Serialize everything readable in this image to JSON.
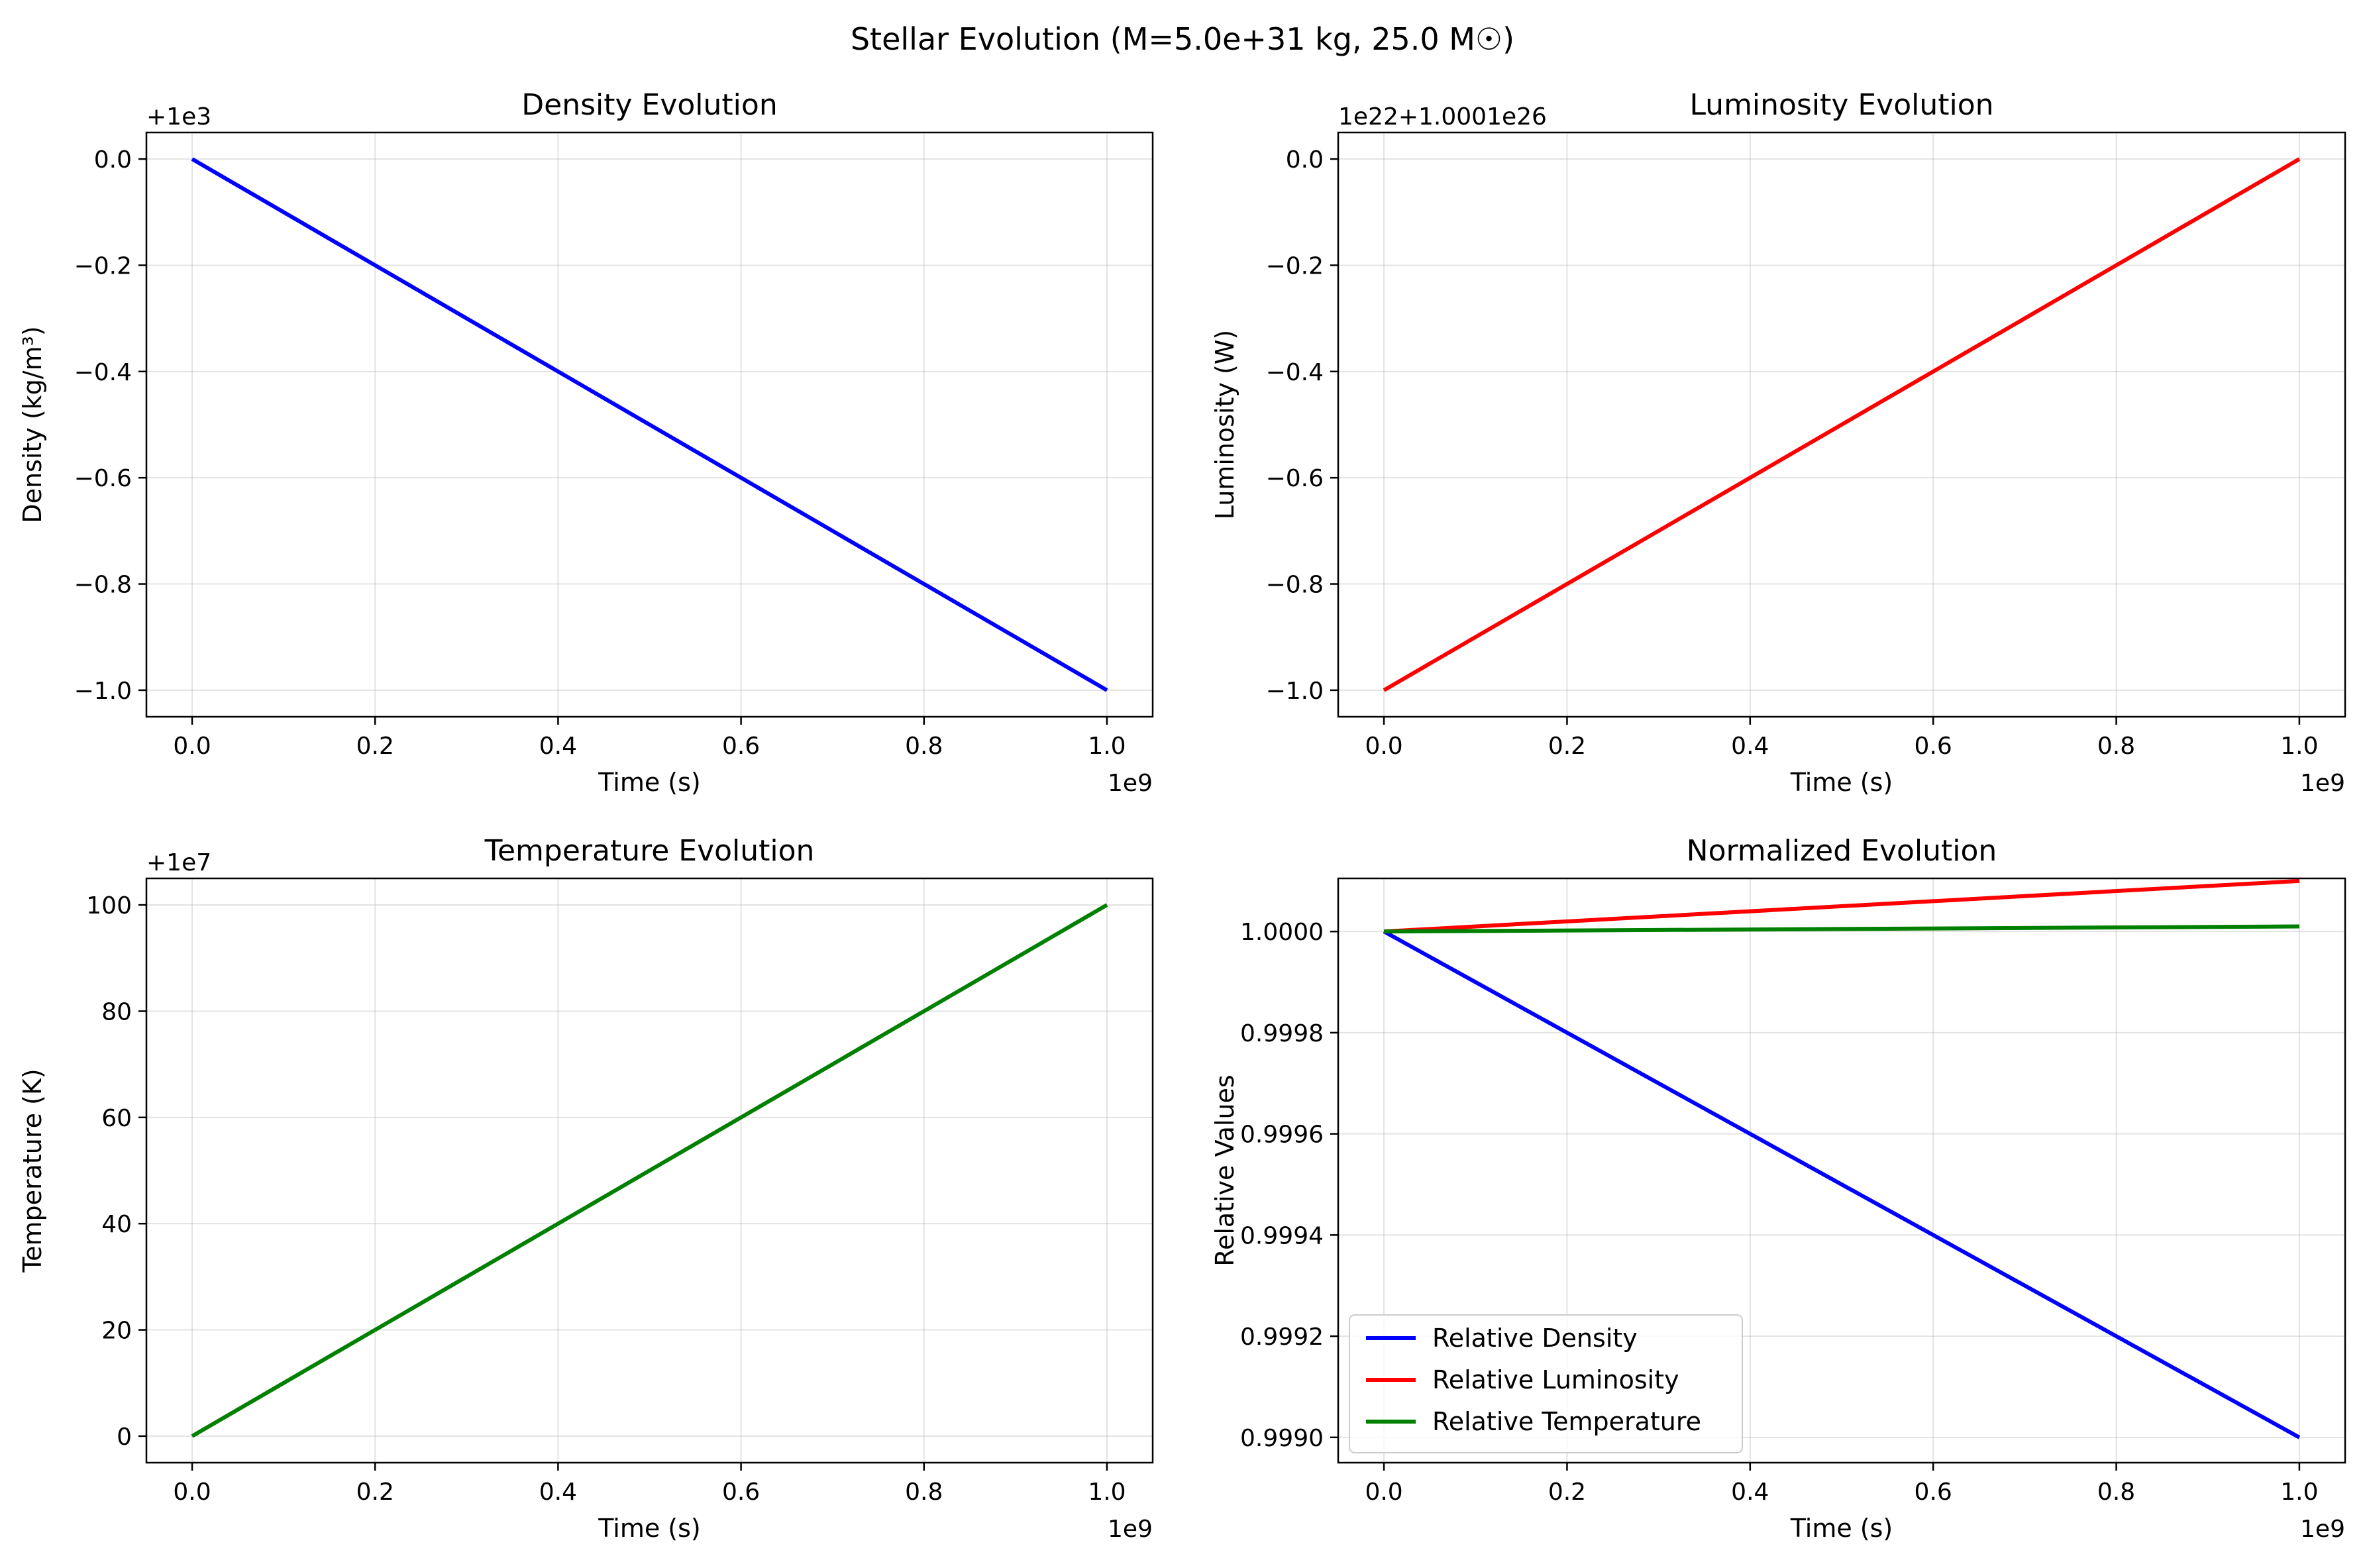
{
  "figure": {
    "suptitle": "Stellar Evolution (M=5.0e+31 kg, 25.0 M☉)"
  },
  "chart_data": [
    {
      "type": "line",
      "title": "Density Evolution",
      "xlabel": "Time (s)",
      "ylabel": "Density (kg/m³)",
      "x_offset_label": "1e9",
      "y_offset_label": "+1e3",
      "xlim": [
        -0.05,
        1.05
      ],
      "ylim": [
        -1.05,
        0.05
      ],
      "xticks": [
        0.0,
        0.2,
        0.4,
        0.6,
        0.8,
        1.0
      ],
      "xtick_labels": [
        "0.0",
        "0.2",
        "0.4",
        "0.6",
        "0.8",
        "1.0"
      ],
      "yticks": [
        0.0,
        -0.2,
        -0.4,
        -0.6,
        -0.8,
        -1.0
      ],
      "ytick_labels": [
        "0.0",
        "−0.2",
        "−0.4",
        "−0.6",
        "−0.8",
        "−1.0"
      ],
      "grid": true,
      "series": [
        {
          "color": "#0000ff",
          "x": [
            0.0,
            1.0
          ],
          "y": [
            0.0,
            -1.0
          ]
        }
      ]
    },
    {
      "type": "line",
      "title": "Luminosity Evolution",
      "xlabel": "Time (s)",
      "ylabel": "Luminosity (W)",
      "x_offset_label": "1e9",
      "y_offset_label": "1e22+1.0001e26",
      "xlim": [
        -0.05,
        1.05
      ],
      "ylim": [
        -1.05,
        0.05
      ],
      "xticks": [
        0.0,
        0.2,
        0.4,
        0.6,
        0.8,
        1.0
      ],
      "xtick_labels": [
        "0.0",
        "0.2",
        "0.4",
        "0.6",
        "0.8",
        "1.0"
      ],
      "yticks": [
        0.0,
        -0.2,
        -0.4,
        -0.6,
        -0.8,
        -1.0
      ],
      "ytick_labels": [
        "0.0",
        "−0.2",
        "−0.4",
        "−0.6",
        "−0.8",
        "−1.0"
      ],
      "grid": true,
      "series": [
        {
          "color": "#ff0000",
          "x": [
            0.0,
            1.0
          ],
          "y": [
            -1.0,
            0.0
          ]
        }
      ]
    },
    {
      "type": "line",
      "title": "Temperature Evolution",
      "xlabel": "Time (s)",
      "ylabel": "Temperature (K)",
      "x_offset_label": "1e9",
      "y_offset_label": "+1e7",
      "xlim": [
        -0.05,
        1.05
      ],
      "ylim": [
        -5,
        105
      ],
      "xticks": [
        0.0,
        0.2,
        0.4,
        0.6,
        0.8,
        1.0
      ],
      "xtick_labels": [
        "0.0",
        "0.2",
        "0.4",
        "0.6",
        "0.8",
        "1.0"
      ],
      "yticks": [
        0,
        20,
        40,
        60,
        80,
        100
      ],
      "ytick_labels": [
        "0",
        "20",
        "40",
        "60",
        "80",
        "100"
      ],
      "grid": true,
      "series": [
        {
          "color": "#008000",
          "x": [
            0.0,
            1.0
          ],
          "y": [
            0,
            100
          ]
        }
      ]
    },
    {
      "type": "line",
      "title": "Normalized Evolution",
      "xlabel": "Time (s)",
      "ylabel": "Relative Values",
      "x_offset_label": "1e9",
      "y_offset_label": "",
      "xlim": [
        -0.05,
        1.05
      ],
      "ylim": [
        0.99895,
        1.000105
      ],
      "xticks": [
        0.0,
        0.2,
        0.4,
        0.6,
        0.8,
        1.0
      ],
      "xtick_labels": [
        "0.0",
        "0.2",
        "0.4",
        "0.6",
        "0.8",
        "1.0"
      ],
      "yticks": [
        1.0,
        0.9998,
        0.9996,
        0.9994,
        0.9992,
        0.999
      ],
      "ytick_labels": [
        "1.0000",
        "0.9998",
        "0.9996",
        "0.9994",
        "0.9992",
        "0.9990"
      ],
      "grid": true,
      "legend": "lower-left",
      "series": [
        {
          "name": "Relative Density",
          "color": "#0000ff",
          "x": [
            0.0,
            1.0
          ],
          "y": [
            1.0,
            0.999
          ]
        },
        {
          "name": "Relative Luminosity",
          "color": "#ff0000",
          "x": [
            0.0,
            1.0
          ],
          "y": [
            1.0,
            1.0001
          ]
        },
        {
          "name": "Relative Temperature",
          "color": "#008000",
          "x": [
            0.0,
            1.0
          ],
          "y": [
            1.0,
            1.00001
          ]
        }
      ]
    }
  ]
}
